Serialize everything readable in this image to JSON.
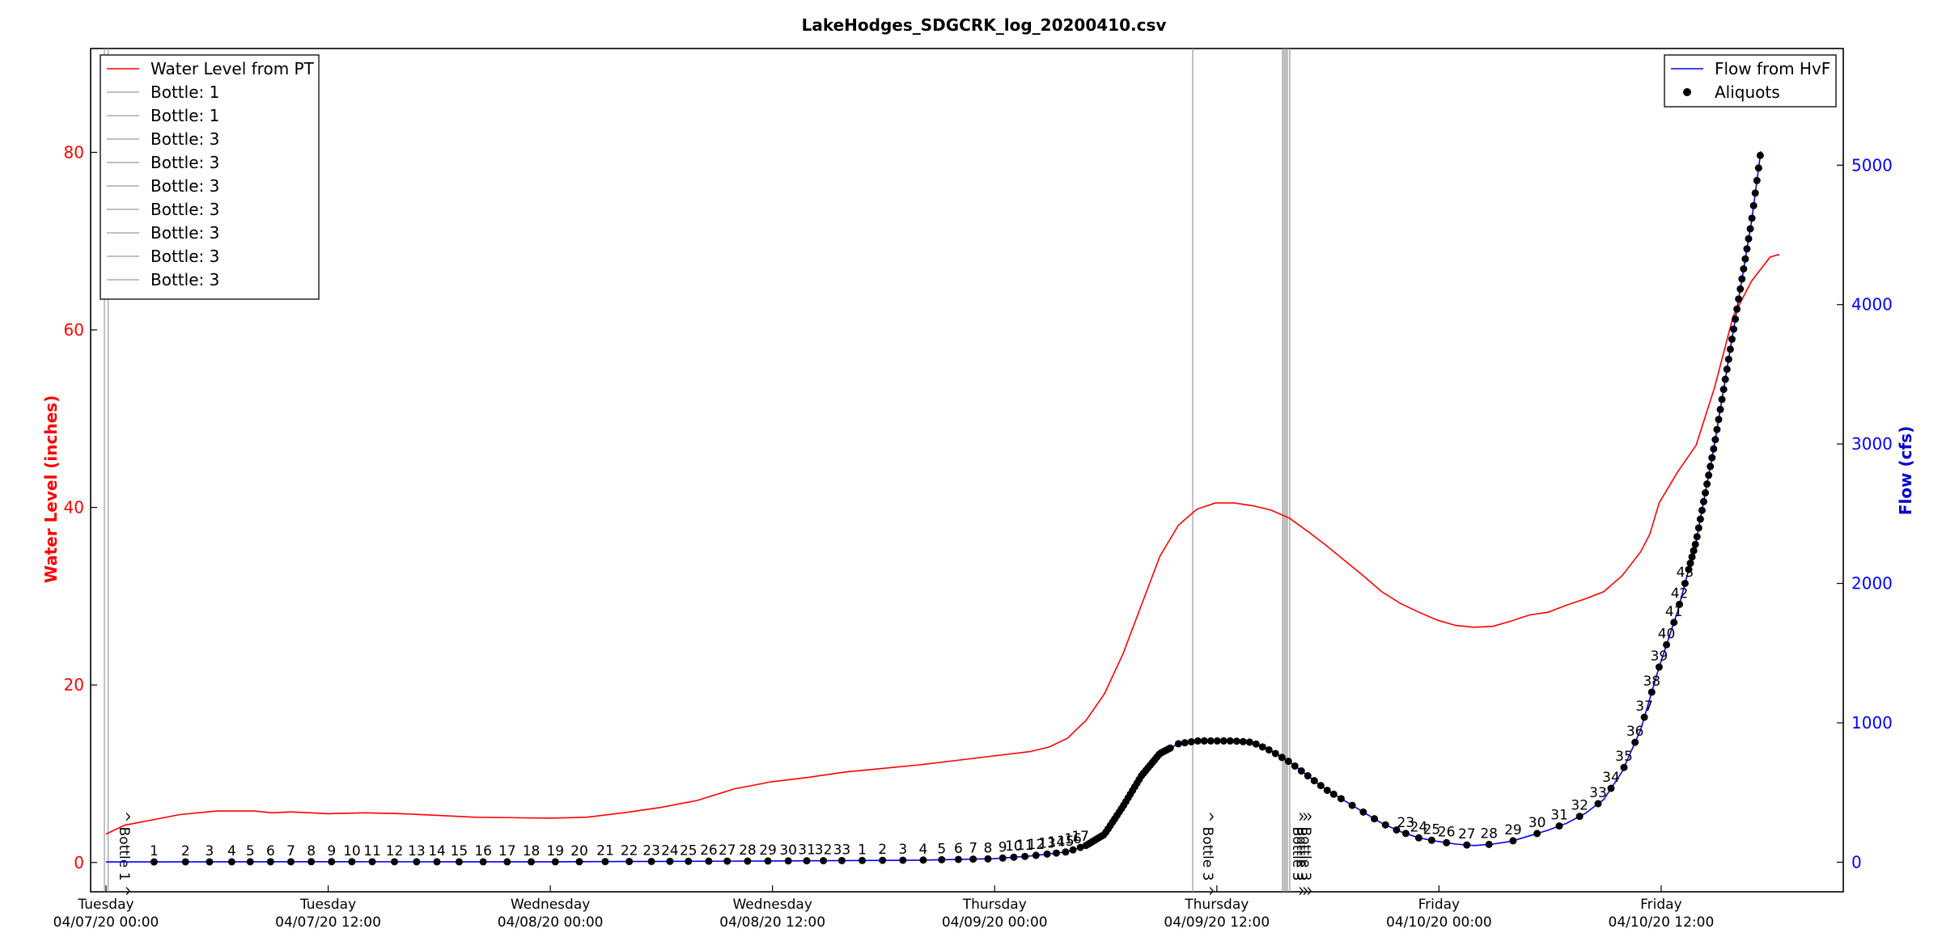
{
  "chart_data": {
    "type": "line",
    "title": "LakeHodges_SDGCRK_log_20200410.csv",
    "ylabel_left": "Water Level (inches)",
    "ylabel_right": "Flow (cfs)",
    "x_range_hours": [
      0,
      78
    ],
    "ylim_left": [
      -3.3,
      91.7
    ],
    "ylim_right": [
      -212,
      5837
    ],
    "y_left_ticks": [
      0,
      20,
      40,
      60,
      80
    ],
    "y_right_ticks": [
      0,
      1000,
      2000,
      3000,
      4000,
      5000
    ],
    "x_ticks": [
      {
        "at": 0,
        "day": "Tuesday",
        "date": "04/07/20 00:00"
      },
      {
        "at": 12,
        "day": "Tuesday",
        "date": "04/07/20 12:00"
      },
      {
        "at": 24,
        "day": "Wednesday",
        "date": "04/08/20 00:00"
      },
      {
        "at": 36,
        "day": "Wednesday",
        "date": "04/08/20 12:00"
      },
      {
        "at": 48,
        "day": "Thursday",
        "date": "04/09/20 00:00"
      },
      {
        "at": 60,
        "day": "Thursday",
        "date": "04/09/20 12:00"
      },
      {
        "at": 72,
        "day": "Friday",
        "date": "04/10/20 00:00"
      },
      {
        "at": 84,
        "day": "Friday",
        "date": "04/10/20 12:00"
      }
    ],
    "legend_left": {
      "placement": "upper-left",
      "entries": [
        "Water Level from PT",
        "Bottle: 1",
        "Bottle: 1",
        "Bottle: 3",
        "Bottle: 3",
        "Bottle: 3",
        "Bottle: 3",
        "Bottle: 3",
        "Bottle: 3",
        "Bottle: 3"
      ]
    },
    "legend_right": {
      "placement": "upper-right",
      "entries": [
        "Flow from HvF",
        "Aliquots"
      ]
    },
    "series": [
      {
        "name": "Water Level from PT",
        "color": "#ff0000",
        "axis": "left",
        "points": [
          [
            0,
            3.2
          ],
          [
            1,
            4.2
          ],
          [
            2,
            4.6
          ],
          [
            4,
            5.4
          ],
          [
            6,
            5.8
          ],
          [
            8,
            5.8
          ],
          [
            9,
            5.6
          ],
          [
            10,
            5.7
          ],
          [
            12,
            5.5
          ],
          [
            14,
            5.6
          ],
          [
            16,
            5.5
          ],
          [
            18,
            5.3
          ],
          [
            20,
            5.1
          ],
          [
            24,
            5.0
          ],
          [
            26,
            5.1
          ],
          [
            28,
            5.6
          ],
          [
            30,
            6.2
          ],
          [
            32,
            7.0
          ],
          [
            34,
            8.3
          ],
          [
            36,
            9.1
          ],
          [
            38,
            9.6
          ],
          [
            40,
            10.2
          ],
          [
            42,
            10.6
          ],
          [
            44,
            11.0
          ],
          [
            46,
            11.5
          ],
          [
            48,
            12.0
          ],
          [
            50,
            12.5
          ],
          [
            51,
            13.0
          ],
          [
            52,
            14.0
          ],
          [
            53,
            16.0
          ],
          [
            54,
            19.0
          ],
          [
            55,
            23.5
          ],
          [
            56,
            29.0
          ],
          [
            57,
            34.5
          ],
          [
            58,
            38.0
          ],
          [
            59,
            39.8
          ],
          [
            60,
            40.5
          ],
          [
            61,
            40.5
          ],
          [
            62,
            40.2
          ],
          [
            63,
            39.7
          ],
          [
            64,
            38.8
          ],
          [
            65,
            37.3
          ],
          [
            66,
            35.7
          ],
          [
            67,
            34.0
          ],
          [
            68,
            32.3
          ],
          [
            69,
            30.5
          ],
          [
            70,
            29.2
          ],
          [
            71,
            28.2
          ],
          [
            72,
            27.3
          ],
          [
            73,
            26.7
          ],
          [
            74,
            26.5
          ],
          [
            75,
            26.6
          ],
          [
            76,
            27.2
          ],
          [
            77,
            27.9
          ],
          [
            78,
            28.2
          ],
          [
            79,
            29.0
          ],
          [
            80,
            29.7
          ],
          [
            81,
            30.5
          ],
          [
            82,
            32.3
          ],
          [
            83,
            35.0
          ],
          [
            83.5,
            37.0
          ],
          [
            84,
            40.5
          ],
          [
            85,
            44.0
          ],
          [
            86,
            47.0
          ],
          [
            87,
            53.5
          ],
          [
            88,
            61.5
          ],
          [
            89,
            65.5
          ],
          [
            90,
            68.2
          ],
          [
            90.5,
            68.5
          ]
        ]
      },
      {
        "name": "Flow from HvF",
        "color": "#0000ff",
        "axis": "right",
        "points": [
          [
            0,
            2
          ],
          [
            6,
            3
          ],
          [
            12,
            4
          ],
          [
            18,
            3
          ],
          [
            24,
            3
          ],
          [
            30,
            6
          ],
          [
            36,
            9
          ],
          [
            40,
            12
          ],
          [
            44,
            15
          ],
          [
            48,
            25
          ],
          [
            50,
            45
          ],
          [
            52,
            75
          ],
          [
            53,
            120
          ],
          [
            54,
            200
          ],
          [
            55,
            400
          ],
          [
            56,
            620
          ],
          [
            57,
            780
          ],
          [
            58,
            850
          ],
          [
            59,
            870
          ],
          [
            60,
            870
          ],
          [
            61,
            870
          ],
          [
            62,
            860
          ],
          [
            63,
            800
          ],
          [
            64,
            720
          ],
          [
            65,
            620
          ],
          [
            66,
            520
          ],
          [
            67,
            440
          ],
          [
            68,
            360
          ],
          [
            69,
            280
          ],
          [
            70,
            220
          ],
          [
            71,
            175
          ],
          [
            72,
            150
          ],
          [
            73,
            130
          ],
          [
            74,
            120
          ],
          [
            75,
            130
          ],
          [
            76,
            150
          ],
          [
            77,
            190
          ],
          [
            78,
            230
          ],
          [
            79,
            280
          ],
          [
            80,
            350
          ],
          [
            81,
            450
          ],
          [
            82,
            650
          ],
          [
            83,
            950
          ],
          [
            84,
            1400
          ],
          [
            85,
            1800
          ],
          [
            86,
            2300
          ],
          [
            87,
            3000
          ],
          [
            88,
            3800
          ],
          [
            89,
            4600
          ],
          [
            89.5,
            5100
          ]
        ]
      }
    ],
    "bottle_markers": [
      {
        "at": 0.4,
        "label": "^ Bottle 1 ^"
      },
      {
        "at": 58.7,
        "label": "^ Bottle 3 ^"
      },
      {
        "at": 63.5,
        "label": "^ Bottle 3 ^"
      }
    ],
    "aliquots_series": {
      "name": "Aliquots",
      "color": "#000000",
      "axis": "right"
    },
    "aliquots_sequence_1": [
      {
        "at": 2.6,
        "n": "1"
      },
      {
        "at": 4.3,
        "n": "2"
      },
      {
        "at": 5.6,
        "n": "3"
      },
      {
        "at": 6.8,
        "n": "4"
      },
      {
        "at": 7.8,
        "n": "5"
      },
      {
        "at": 8.9,
        "n": "6"
      },
      {
        "at": 10.0,
        "n": "7"
      },
      {
        "at": 11.1,
        "n": "8"
      },
      {
        "at": 12.2,
        "n": "9"
      },
      {
        "at": 13.3,
        "n": "10"
      },
      {
        "at": 14.4,
        "n": "11"
      },
      {
        "at": 15.6,
        "n": "12"
      },
      {
        "at": 16.8,
        "n": "13"
      },
      {
        "at": 17.9,
        "n": "14"
      },
      {
        "at": 19.1,
        "n": "15"
      },
      {
        "at": 20.4,
        "n": "16"
      },
      {
        "at": 21.7,
        "n": "17"
      },
      {
        "at": 23.0,
        "n": "18"
      },
      {
        "at": 24.3,
        "n": "19"
      },
      {
        "at": 25.6,
        "n": "20"
      },
      {
        "at": 27.0,
        "n": "21"
      },
      {
        "at": 28.3,
        "n": "22"
      },
      {
        "at": 29.5,
        "n": "23"
      },
      {
        "at": 30.5,
        "n": "24"
      },
      {
        "at": 31.5,
        "n": "25"
      },
      {
        "at": 32.6,
        "n": "26"
      },
      {
        "at": 33.6,
        "n": "27"
      },
      {
        "at": 34.7,
        "n": "28"
      },
      {
        "at": 35.8,
        "n": "29"
      },
      {
        "at": 36.9,
        "n": "30"
      },
      {
        "at": 37.9,
        "n": "31"
      },
      {
        "at": 38.8,
        "n": "32"
      },
      {
        "at": 39.8,
        "n": "33"
      }
    ],
    "aliquots_sequence_2": [
      {
        "at": 40.9,
        "n": "1"
      },
      {
        "at": 42.0,
        "n": "2"
      },
      {
        "at": 43.1,
        "n": "3"
      },
      {
        "at": 44.2,
        "n": "4"
      },
      {
        "at": 45.2,
        "n": "5"
      },
      {
        "at": 46.1,
        "n": "6"
      },
      {
        "at": 46.9,
        "n": "7"
      },
      {
        "at": 47.7,
        "n": "8"
      },
      {
        "at": 48.5,
        "n": "9"
      },
      {
        "at": 49.1,
        "n": "10"
      },
      {
        "at": 49.7,
        "n": "11"
      },
      {
        "at": 50.3,
        "n": "12"
      },
      {
        "at": 50.9,
        "n": "13"
      },
      {
        "at": 51.4,
        "n": "14"
      },
      {
        "at": 51.9,
        "n": "15"
      },
      {
        "at": 52.3,
        "n": "16"
      },
      {
        "at": 52.7,
        "n": "17"
      }
    ],
    "aliquots_sequence_3": [
      {
        "at": 70.3,
        "n": "23"
      },
      {
        "at": 71.0,
        "n": "24"
      },
      {
        "at": 71.7,
        "n": "25"
      },
      {
        "at": 72.5,
        "n": "26"
      },
      {
        "at": 73.6,
        "n": "27"
      },
      {
        "at": 74.8,
        "n": "28"
      },
      {
        "at": 76.1,
        "n": "29"
      },
      {
        "at": 77.4,
        "n": "30"
      },
      {
        "at": 78.6,
        "n": "31"
      },
      {
        "at": 79.7,
        "n": "32"
      },
      {
        "at": 80.7,
        "n": "33"
      },
      {
        "at": 81.4,
        "n": "34"
      },
      {
        "at": 82.1,
        "n": "35"
      },
      {
        "at": 82.7,
        "n": "36"
      },
      {
        "at": 83.2,
        "n": "37"
      },
      {
        "at": 83.6,
        "n": "38"
      },
      {
        "at": 84.0,
        "n": "39"
      },
      {
        "at": 84.4,
        "n": "40"
      },
      {
        "at": 84.8,
        "n": "41"
      },
      {
        "at": 85.1,
        "n": "42"
      },
      {
        "at": 85.4,
        "n": "43"
      }
    ]
  }
}
